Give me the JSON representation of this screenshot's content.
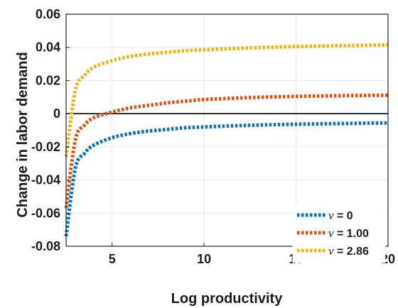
{
  "chart_data": {
    "type": "line",
    "title": "",
    "xlabel": "Log productivity",
    "ylabel": "Change in labor demand",
    "xlim": [
      2.5,
      20
    ],
    "ylim": [
      -0.08,
      0.06
    ],
    "xticks": [
      5,
      10,
      15,
      20
    ],
    "xtick_labels": [
      "5",
      "10",
      "15",
      "20"
    ],
    "yticks": [
      -0.08,
      -0.06,
      -0.04,
      -0.02,
      0,
      0.02,
      0.04,
      0.06
    ],
    "ytick_labels": [
      "-0.08",
      "-0.06",
      "-0.04",
      "-0.02",
      "0",
      "0.02",
      "0.04",
      "0.06"
    ],
    "grid": true,
    "zero_line": true,
    "legend_position": "bottom-right",
    "x": [
      2.5,
      3,
      3.5,
      4,
      5,
      6,
      7,
      8,
      9,
      10,
      12,
      14,
      16,
      18,
      20
    ],
    "series": [
      {
        "name": "ν = 0",
        "color": "#0072BD",
        "values": [
          -0.074,
          -0.033,
          -0.024,
          -0.019,
          -0.0145,
          -0.012,
          -0.0105,
          -0.0095,
          -0.0085,
          -0.008,
          -0.0072,
          -0.0066,
          -0.0062,
          -0.0059,
          -0.0056
        ]
      },
      {
        "name": "ν = 1.00",
        "color": "#D95319",
        "values": [
          -0.057,
          -0.016,
          -0.007,
          -0.0025,
          0.001,
          0.0035,
          0.005,
          0.0065,
          0.0075,
          0.0085,
          0.0095,
          0.0102,
          0.0106,
          0.0109,
          0.0111
        ]
      },
      {
        "name": "ν = 2.86",
        "color": "#EDB120",
        "values": [
          -0.026,
          0.014,
          0.023,
          0.028,
          0.032,
          0.0345,
          0.036,
          0.037,
          0.038,
          0.0385,
          0.0395,
          0.0402,
          0.0407,
          0.0411,
          0.0415
        ]
      }
    ]
  }
}
